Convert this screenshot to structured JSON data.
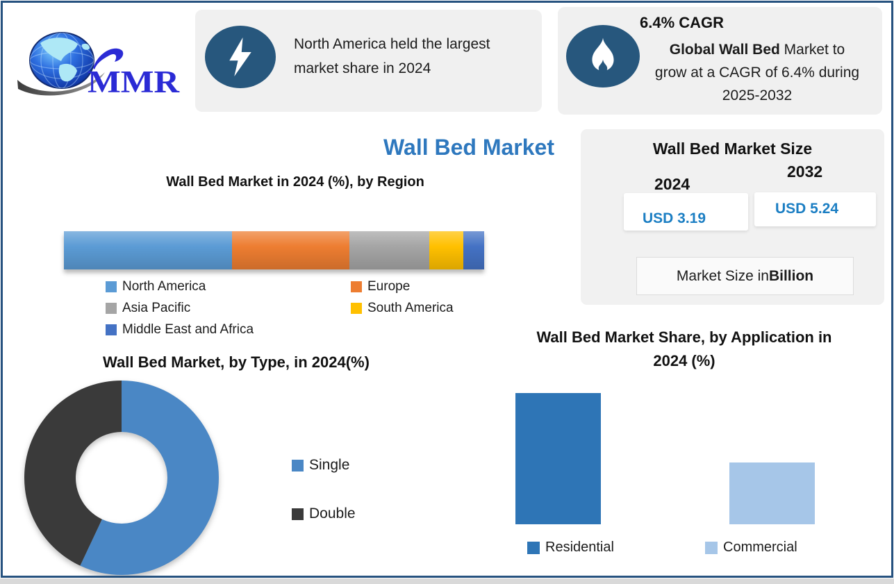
{
  "logo": {
    "text": "MMR"
  },
  "callout_na": {
    "icon": "lightning-icon",
    "line1": "North America held the largest",
    "line2": "market share in 2024"
  },
  "callout_cagr": {
    "icon": "flame-icon",
    "heading": "6.4% CAGR",
    "lead_bold": "Global Wall Bed",
    "lead_rest": " Market to",
    "line2": "grow at a CAGR of 6.4% during",
    "line3": "2025-2032"
  },
  "main_title": "Wall Bed Market",
  "market_size_panel": {
    "title": "Wall Bed Market Size",
    "year_left": "2024",
    "year_right": "2032",
    "value_left": "USD 3.19",
    "value_right": "USD 5.24",
    "note_text": "Market Size in ",
    "note_bold": "Billion"
  },
  "colors": {
    "frame_border": "#26527F",
    "callout_background": "#F0F0F0",
    "icon_circle": "#27577D",
    "accent_blue_title": "#2E78BE",
    "usd_value_blue": "#1B7EC3",
    "panel_background": "#F1F1F1"
  },
  "chart_data": [
    {
      "id": "region",
      "type": "bar",
      "subtype": "horizontal-stacked",
      "title": "Wall Bed Market in 2024 (%), by Region",
      "unit": "%",
      "legend_position": "bottom",
      "series": [
        {
          "name": "North America",
          "value": 40,
          "color": "#5B9BD5"
        },
        {
          "name": "Europe",
          "value": 28,
          "color": "#ED7D31"
        },
        {
          "name": "Asia Pacific",
          "value": 19,
          "color": "#A5A5A5"
        },
        {
          "name": "South America",
          "value": 8,
          "color": "#FFC000"
        },
        {
          "name": "Middle East and Africa",
          "value": 5,
          "color": "#4472C4"
        }
      ]
    },
    {
      "id": "type",
      "type": "pie",
      "subtype": "donut",
      "title": "Wall Bed Market, by Type, in 2024(%)",
      "unit": "%",
      "legend_position": "right",
      "slices": [
        {
          "name": "Single",
          "value": 57,
          "color": "#4A87C5"
        },
        {
          "name": "Double",
          "value": 43,
          "color": "#3A3A3A"
        }
      ]
    },
    {
      "id": "application",
      "type": "bar",
      "title": "Wall Bed Market Share, by Application in 2024 (%)",
      "unit": "%",
      "legend_position": "bottom",
      "categories": [
        "Residential",
        "Commercial"
      ],
      "values": [
        68,
        32
      ],
      "colors": [
        "#2E75B6",
        "#A6C6E8"
      ]
    }
  ]
}
